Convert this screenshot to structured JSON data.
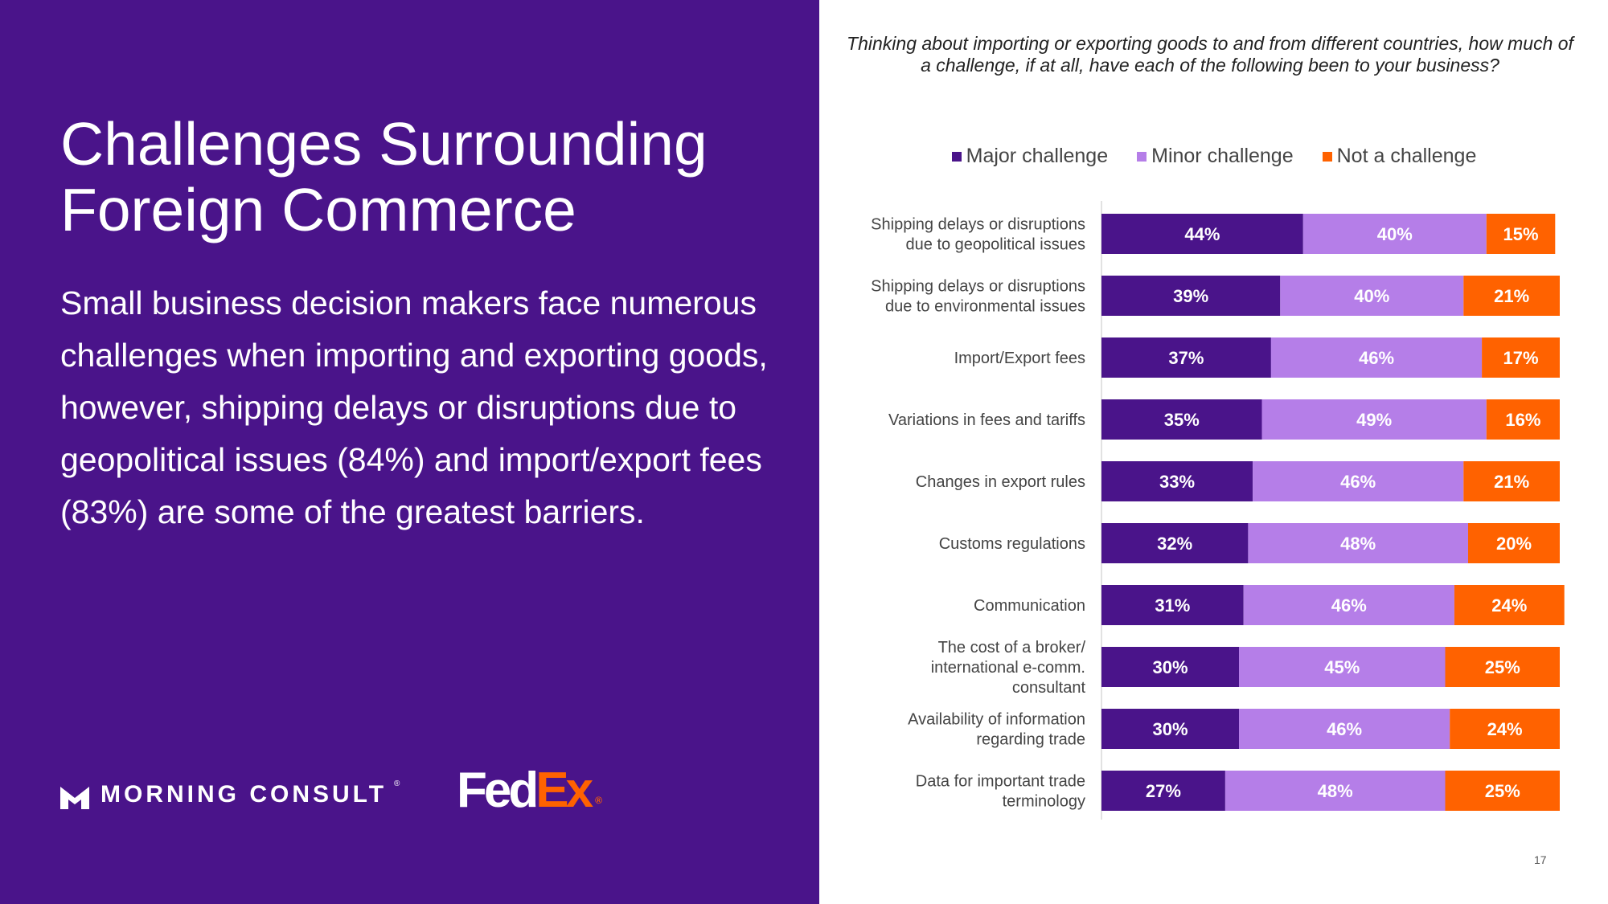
{
  "slide": {
    "title_line1": "Challenges Surrounding",
    "title_line2": "Foreign Commerce",
    "body": "Small business decision makers face numerous challenges when importing and exporting goods, however, shipping delays or disruptions due to geopolitical issues (84%) and import/export fees (83%) are some of the greatest barriers.",
    "page_number": "17"
  },
  "logos": {
    "morning_consult": "MORNING CONSULT",
    "morning_consult_reg": "®",
    "fedex_fed": "Fed",
    "fedex_ex": "Ex",
    "fedex_reg": "®"
  },
  "colors": {
    "panel": "#4a148a",
    "major": "#4a148a",
    "minor": "#b57ee8",
    "not": "#ff6200",
    "fedex_orange": "#ff6200"
  },
  "chart_data": {
    "type": "bar",
    "orientation": "horizontal",
    "stacked": true,
    "title": "Thinking about importing or exporting goods to and from different countries, how much of a challenge, if at all, have each of the following been to your business?",
    "xlabel": "",
    "ylabel": "",
    "legend_position": "top",
    "categories": [
      [
        "Shipping delays or disruptions",
        "due to geopolitical issues"
      ],
      [
        "Shipping delays or disruptions",
        "due to environmental issues"
      ],
      [
        "Import/Export fees"
      ],
      [
        "Variations in fees and tariffs"
      ],
      [
        "Changes in export rules"
      ],
      [
        "Customs regulations"
      ],
      [
        "Communication"
      ],
      [
        "The cost of a broker/",
        "international e-comm.",
        "consultant"
      ],
      [
        "Availability of information",
        "regarding trade"
      ],
      [
        "Data for important trade",
        "terminology"
      ]
    ],
    "series": [
      {
        "name": "Major challenge",
        "values": [
          44,
          39,
          37,
          35,
          33,
          32,
          31,
          30,
          30,
          27
        ]
      },
      {
        "name": "Minor challenge",
        "values": [
          40,
          40,
          46,
          49,
          46,
          48,
          46,
          45,
          46,
          48
        ]
      },
      {
        "name": "Not a challenge",
        "values": [
          15,
          21,
          17,
          16,
          21,
          20,
          24,
          25,
          24,
          25
        ]
      }
    ],
    "value_suffix": "%"
  }
}
